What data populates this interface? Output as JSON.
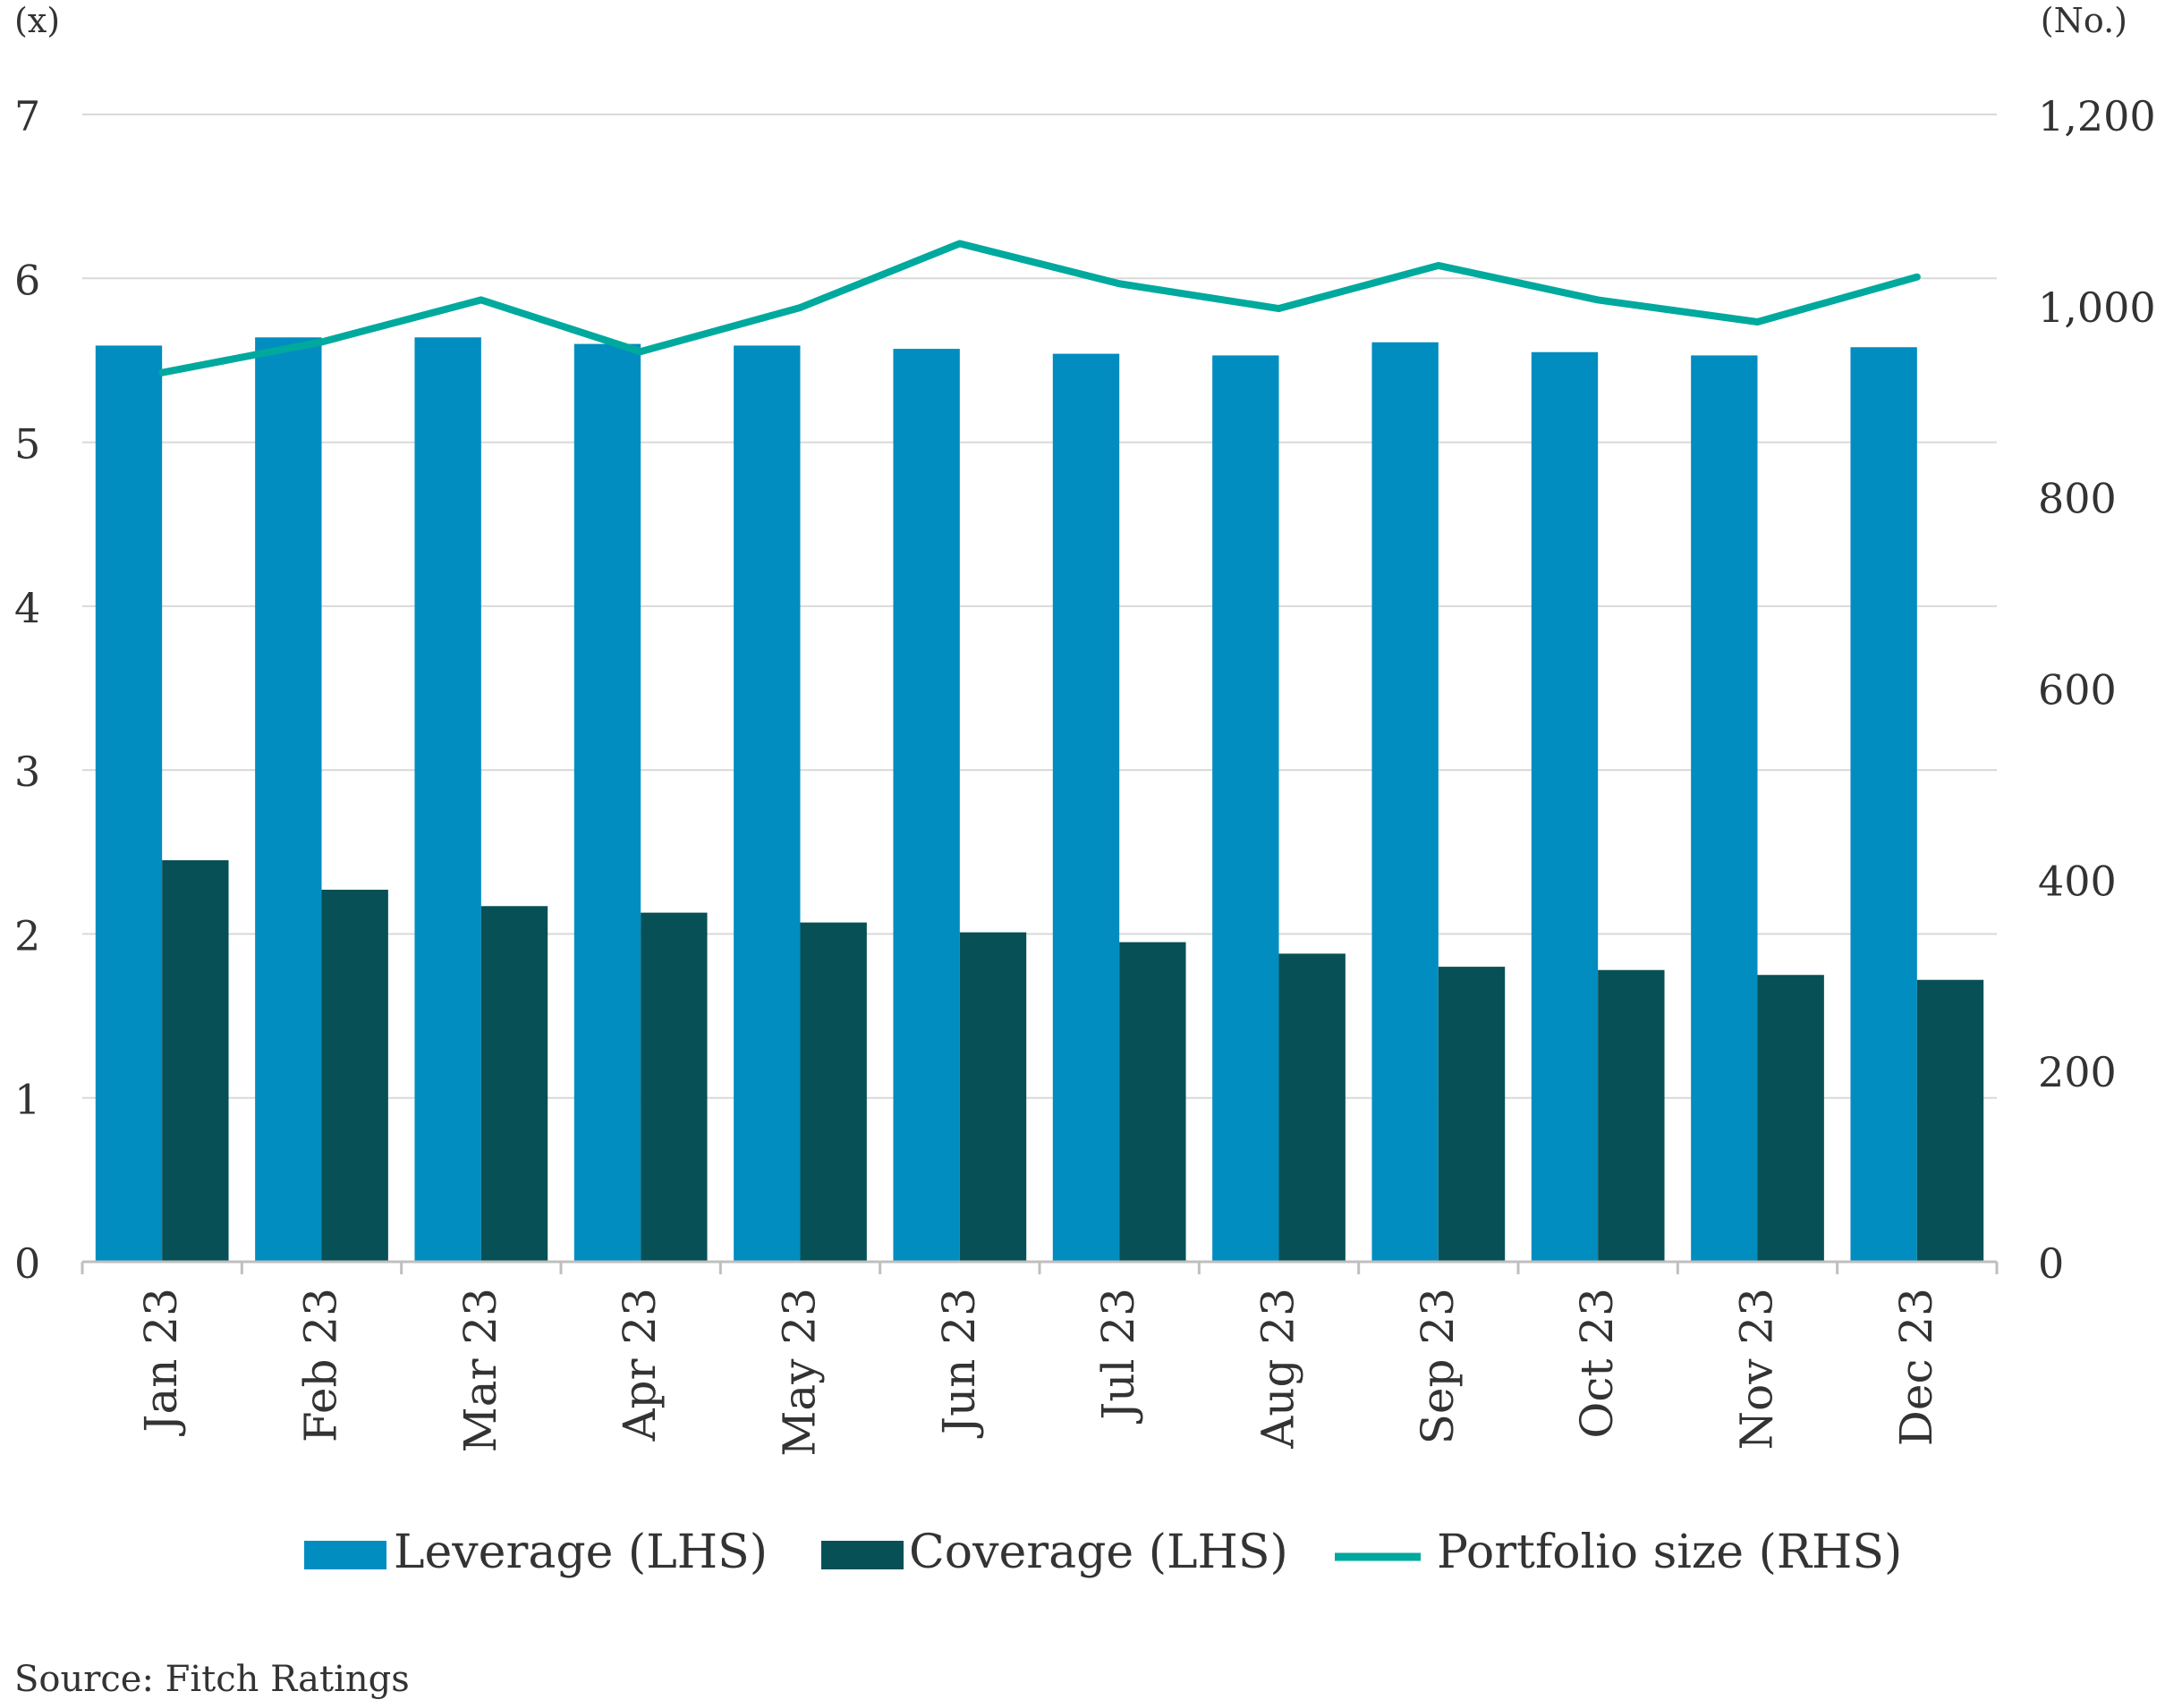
{
  "chart_data": {
    "type": "bar",
    "left_axis_unit": "(x)",
    "right_axis_unit": "(No.)",
    "categories": [
      "Jan 23",
      "Feb 23",
      "Mar 23",
      "Apr 23",
      "May 23",
      "Jun 23",
      "Jul 23",
      "Aug 23",
      "Sep 23",
      "Oct 23",
      "Nov 23",
      "Dec 23"
    ],
    "series": [
      {
        "name": "Leverage (LHS)",
        "type": "bar",
        "axis": "left",
        "color": "#028DC0",
        "values": [
          5.59,
          5.64,
          5.64,
          5.6,
          5.59,
          5.57,
          5.54,
          5.53,
          5.61,
          5.55,
          5.53,
          5.58
        ]
      },
      {
        "name": "Coverage (LHS)",
        "type": "bar",
        "axis": "left",
        "color": "#075056",
        "values": [
          2.45,
          2.27,
          2.17,
          2.13,
          2.07,
          2.01,
          1.95,
          1.88,
          1.8,
          1.78,
          1.75,
          1.72
        ]
      },
      {
        "name": "Portfolio size (RHS)",
        "type": "line",
        "axis": "right",
        "color": "#00A99D",
        "values": [
          930,
          962,
          1006,
          952,
          998,
          1065,
          1023,
          997,
          1042,
          1006,
          983,
          1030
        ]
      }
    ],
    "left_ylim": [
      0,
      7
    ],
    "left_ticks": [
      "0",
      "1",
      "2",
      "3",
      "4",
      "5",
      "6",
      "7"
    ],
    "right_ylim": [
      0,
      1200
    ],
    "right_ticks": [
      "0",
      "200",
      "400",
      "600",
      "800",
      "1,000",
      "1,200"
    ],
    "grid": true,
    "legend_position": "bottom",
    "source": "Source: Fitch Ratings",
    "colors": {
      "gridline": "#D9D9D9",
      "axis_line": "#BFBFBF",
      "text": "#333333"
    }
  }
}
